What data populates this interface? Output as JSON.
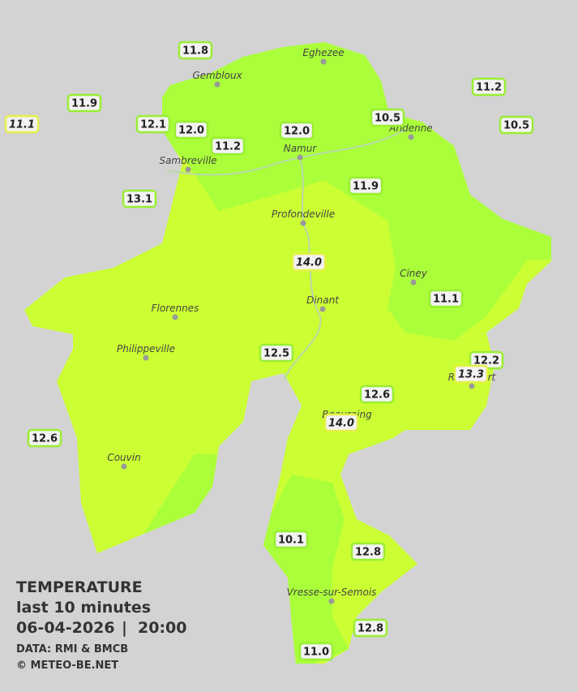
{
  "legend": {
    "title": "TEMPERATURE",
    "period": "last 10 minutes",
    "date": "06-04-2026",
    "time": "20:00",
    "source": "DATA: RMI & BMCB",
    "copyright": "© METEO-BE.NET"
  },
  "cities": [
    {
      "name": "Eghezee"
    },
    {
      "name": "Gembloux"
    },
    {
      "name": "Andenne"
    },
    {
      "name": "Namur"
    },
    {
      "name": "Sambreville"
    },
    {
      "name": "Profondeville"
    },
    {
      "name": "Ciney"
    },
    {
      "name": "Dinant"
    },
    {
      "name": "Florennes"
    },
    {
      "name": "Philippeville"
    },
    {
      "name": "Rochefort"
    },
    {
      "name": "Beauraing"
    },
    {
      "name": "Couvin"
    },
    {
      "name": "Vresse-sur-Semois"
    }
  ],
  "stations": [
    {
      "label": "11.8"
    },
    {
      "label": "11.9"
    },
    {
      "label": "11.1",
      "estimated": true
    },
    {
      "label": "12.1"
    },
    {
      "label": "12.0"
    },
    {
      "label": "11.2"
    },
    {
      "label": "12.0"
    },
    {
      "label": "10.5"
    },
    {
      "label": "11.2"
    },
    {
      "label": "10.5"
    },
    {
      "label": "13.1"
    },
    {
      "label": "11.9"
    },
    {
      "label": "14.0",
      "estimated": true
    },
    {
      "label": "11.1"
    },
    {
      "label": "12.5"
    },
    {
      "label": "12.2"
    },
    {
      "label": "13.3",
      "estimated": true
    },
    {
      "label": "12.6"
    },
    {
      "label": "14.0",
      "estimated": true
    },
    {
      "label": "12.6"
    },
    {
      "label": "10.1"
    },
    {
      "label": "12.8"
    },
    {
      "label": "12.8"
    },
    {
      "label": "11.0"
    }
  ]
}
